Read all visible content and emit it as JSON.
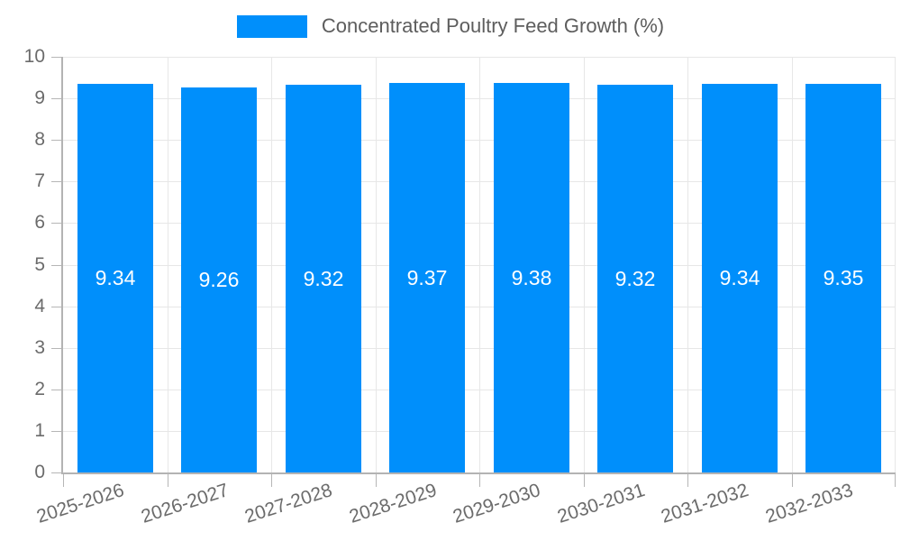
{
  "legend": {
    "label": "Concentrated Poultry Feed Growth (%)"
  },
  "chart_data": {
    "type": "bar",
    "title": "",
    "categories": [
      "2025-2026",
      "2026-2027",
      "2027-2028",
      "2028-2029",
      "2029-2030",
      "2030-2031",
      "2031-2032",
      "2032-2033"
    ],
    "series": [
      {
        "name": "Concentrated Poultry Feed Growth (%)",
        "values": [
          9.34,
          9.26,
          9.32,
          9.37,
          9.38,
          9.32,
          9.34,
          9.35
        ]
      }
    ],
    "data_labels": [
      "9.34",
      "9.26",
      "9.32",
      "9.37",
      "9.38",
      "9.32",
      "9.34",
      "9.35"
    ],
    "xlabel": "",
    "ylabel": "",
    "ylim": [
      0,
      10
    ],
    "ytick_step": 1,
    "ytick_labels": [
      "0",
      "1",
      "2",
      "3",
      "4",
      "5",
      "6",
      "7",
      "8",
      "9",
      "10"
    ],
    "grid": true,
    "legend_position": "top",
    "xlabel_rotation_deg": -18
  },
  "colors": {
    "bar": "#008FFB",
    "grid": "#e7e7e7",
    "axis": "#b6b6b6",
    "tick_label": "#6b6b6b",
    "legend_text": "#5d5d5d",
    "data_label": "#ffffff",
    "background": "#ffffff"
  }
}
